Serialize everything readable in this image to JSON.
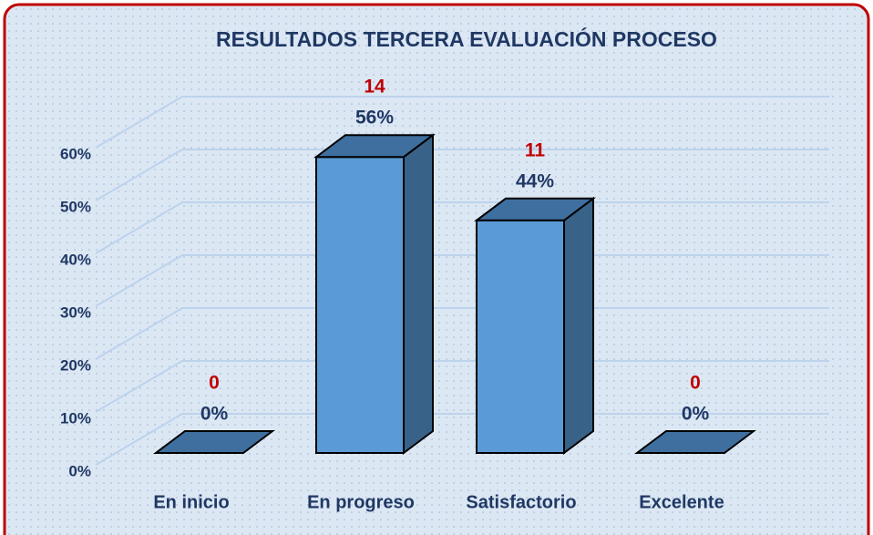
{
  "chart_data": {
    "type": "bar3d",
    "title": "RESULTADOS TERCERA EVALUACIÓN PROCESO",
    "categories": [
      "En inicio",
      "En progreso",
      "Satisfactorio",
      "Excelente"
    ],
    "values": [
      0,
      56,
      44,
      0
    ],
    "value_labels": [
      "0%",
      "56%",
      "44%",
      "0%"
    ],
    "counts": [
      0,
      14,
      11,
      0
    ],
    "color": "#5b9bd5",
    "ylim": [
      0,
      60
    ],
    "yticks": [
      {
        "value": 0,
        "label": "0%"
      },
      {
        "value": 10,
        "label": "10%"
      },
      {
        "value": 20,
        "label": "20%"
      },
      {
        "value": 30,
        "label": "30%"
      },
      {
        "value": 40,
        "label": "40%"
      },
      {
        "value": 50,
        "label": "50%"
      },
      {
        "value": 60,
        "label": "60%"
      }
    ],
    "grid": true
  }
}
